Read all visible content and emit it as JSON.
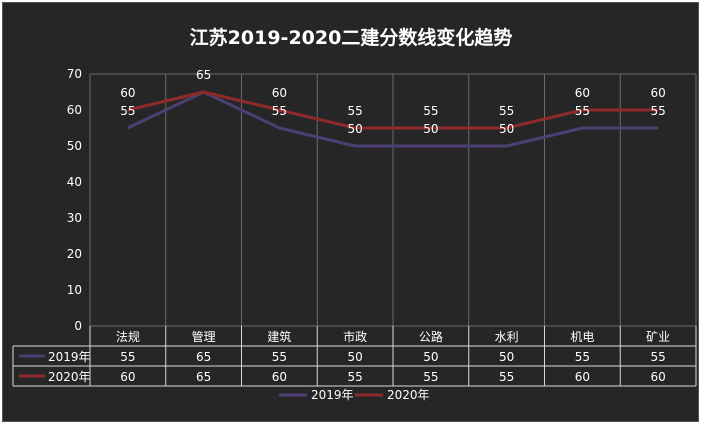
{
  "chart_data": {
    "type": "line",
    "title": "江苏2019-2020二建分数线变化趋势",
    "categories": [
      "法规",
      "管理",
      "建筑",
      "市政",
      "公路",
      "水利",
      "机电",
      "矿业"
    ],
    "series": [
      {
        "name": "2019年",
        "values": [
          55,
          65,
          55,
          50,
          50,
          50,
          55,
          55
        ],
        "color": "#4e3f73"
      },
      {
        "name": "2020年",
        "values": [
          60,
          65,
          60,
          55,
          55,
          55,
          60,
          60
        ],
        "color": "#8f2a2a"
      }
    ],
    "ylim": [
      0,
      70
    ],
    "yticks": [
      0,
      10,
      20,
      30,
      40,
      50,
      60,
      70
    ],
    "grid": "vertical",
    "data_table": true,
    "legend_position": "bottom",
    "background": "#262626"
  }
}
